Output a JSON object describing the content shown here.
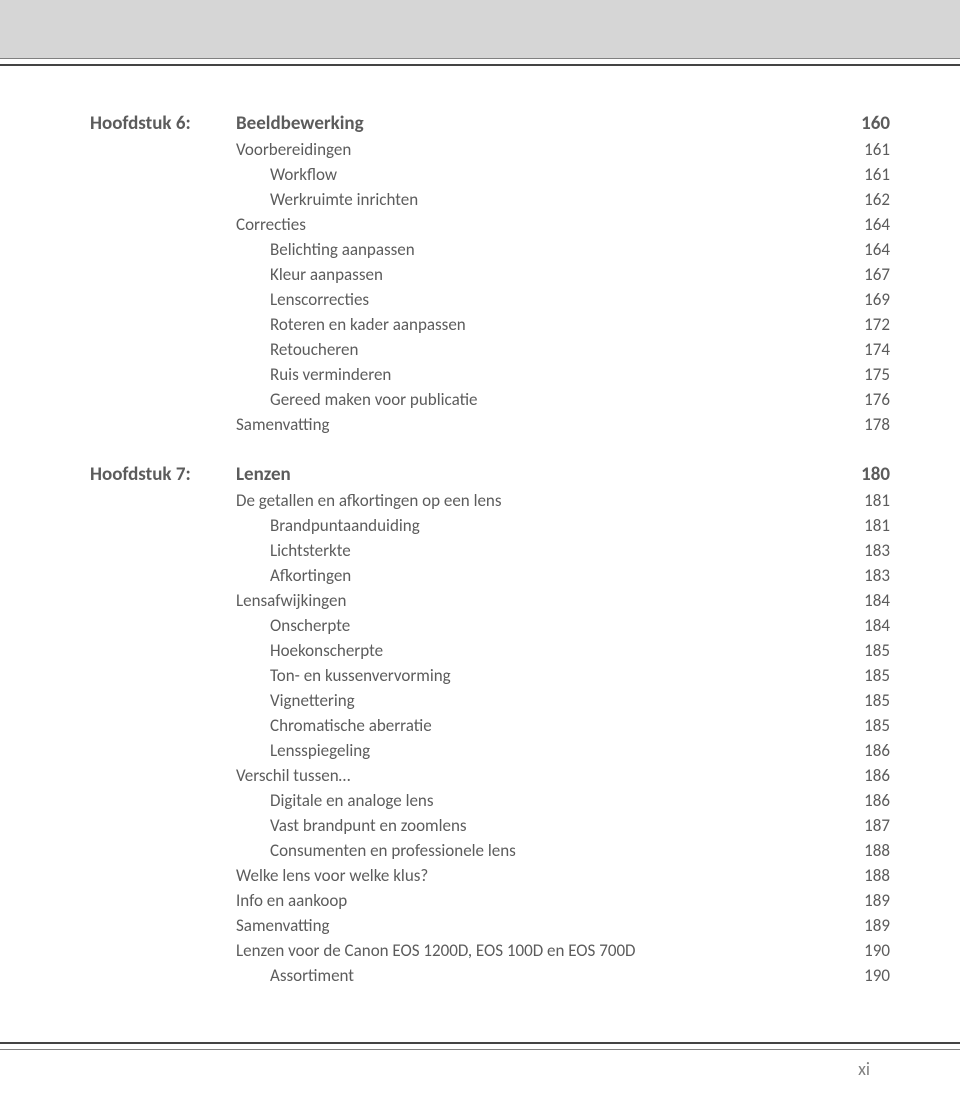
{
  "page_number": "xi",
  "colors": {
    "background": "#ffffff",
    "text": "#5c5c5c",
    "top_band": "#d6d6d6",
    "rule_thin": "#808080",
    "rule_thick": "#444444"
  },
  "typography": {
    "chapter_fontsize_pt": 14,
    "body_fontsize_pt": 12
  },
  "chapter6": {
    "label": "Hoofdstuk 6:",
    "title": "Beeldbewerking",
    "page": "160",
    "sections": [
      {
        "level": 1,
        "title": "Voorbereidingen",
        "page": "161"
      },
      {
        "level": 2,
        "title": "Workflow",
        "page": "161"
      },
      {
        "level": 2,
        "title": "Werkruimte inrichten",
        "page": "162"
      },
      {
        "level": 1,
        "title": "Correcties",
        "page": "164"
      },
      {
        "level": 2,
        "title": "Belichting aanpassen",
        "page": "164"
      },
      {
        "level": 2,
        "title": "Kleur aanpassen",
        "page": "167"
      },
      {
        "level": 2,
        "title": "Lenscorrecties",
        "page": "169"
      },
      {
        "level": 2,
        "title": "Roteren en kader aanpassen",
        "page": "172"
      },
      {
        "level": 2,
        "title": "Retoucheren",
        "page": "174"
      },
      {
        "level": 2,
        "title": "Ruis verminderen",
        "page": "175"
      },
      {
        "level": 2,
        "title": "Gereed maken voor publicatie",
        "page": "176"
      },
      {
        "level": 1,
        "title": "Samenvatting",
        "page": "178"
      }
    ]
  },
  "chapter7": {
    "label": "Hoofdstuk 7:",
    "title": "Lenzen",
    "page": "180",
    "sections": [
      {
        "level": 1,
        "title": "De getallen en afkortingen op een lens",
        "page": "181"
      },
      {
        "level": 2,
        "title": "Brandpuntaanduiding",
        "page": "181"
      },
      {
        "level": 2,
        "title": "Lichtsterkte",
        "page": "183"
      },
      {
        "level": 2,
        "title": "Afkortingen",
        "page": "183"
      },
      {
        "level": 1,
        "title": "Lensafwijkingen",
        "page": "184"
      },
      {
        "level": 2,
        "title": "Onscherpte",
        "page": "184"
      },
      {
        "level": 2,
        "title": "Hoekonscherpte",
        "page": "185"
      },
      {
        "level": 2,
        "title": "Ton- en kussenvervorming",
        "page": "185"
      },
      {
        "level": 2,
        "title": "Vignettering",
        "page": "185"
      },
      {
        "level": 2,
        "title": "Chromatische aberratie",
        "page": "185"
      },
      {
        "level": 2,
        "title": "Lensspiegeling",
        "page": "186"
      },
      {
        "level": 1,
        "title": "Verschil tussen…",
        "page": "186"
      },
      {
        "level": 2,
        "title": "Digitale en analoge lens",
        "page": "186"
      },
      {
        "level": 2,
        "title": "Vast brandpunt en zoomlens",
        "page": "187"
      },
      {
        "level": 2,
        "title": "Consumenten en professionele lens",
        "page": "188"
      },
      {
        "level": 1,
        "title": "Welke lens voor welke klus?",
        "page": "188"
      },
      {
        "level": 1,
        "title": "Info en aankoop",
        "page": "189"
      },
      {
        "level": 1,
        "title": "Samenvatting",
        "page": "189"
      },
      {
        "level": 1,
        "title": "Lenzen voor de Canon EOS 1200D, EOS 100D en EOS 700D",
        "page": "190"
      },
      {
        "level": 2,
        "title": "Assortiment",
        "page": "190"
      }
    ]
  }
}
